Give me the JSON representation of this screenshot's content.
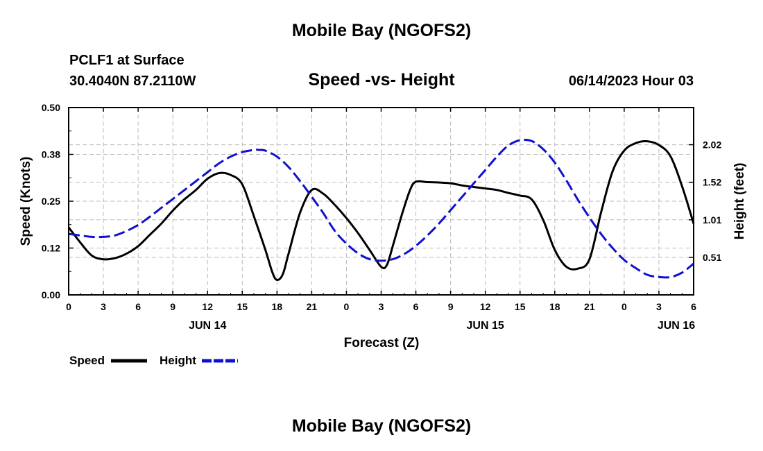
{
  "header": {
    "title": "Mobile Bay (NGOFS2)",
    "station": "PCLF1 at Surface",
    "coords": "30.4040N  87.2110W",
    "subtitle": "Speed -vs- Height",
    "datetime": "06/14/2023 Hour 03"
  },
  "footer": {
    "title": "Mobile Bay (NGOFS2)"
  },
  "chart_data": {
    "type": "line",
    "title": "Speed -vs- Height",
    "xlabel": "Forecast (Z)",
    "ylabel": "Speed (Knots)",
    "y2label": "Height (feet)",
    "x_unit": "hours from JUN 14 00Z",
    "xlim": [
      0,
      54
    ],
    "ylim": [
      0,
      0.5
    ],
    "y2lim": [
      0,
      2.52
    ],
    "x_tick_values": [
      0,
      3,
      6,
      9,
      12,
      15,
      18,
      21,
      24,
      27,
      30,
      33,
      36,
      39,
      42,
      45,
      48,
      51,
      54
    ],
    "x_tick_labels": [
      "0",
      "3",
      "6",
      "9",
      "12",
      "15",
      "18",
      "21",
      "0",
      "3",
      "6",
      "9",
      "12",
      "15",
      "18",
      "21",
      "0",
      "3",
      "6"
    ],
    "date_labels": [
      {
        "x": 12,
        "text": "JUN 14"
      },
      {
        "x": 36,
        "text": "JUN 15"
      },
      {
        "x": 52.5,
        "text": "JUN 16"
      }
    ],
    "y_ticks": [
      "0.00",
      "0.12",
      "0.25",
      "0.38",
      "0.50"
    ],
    "y_tick_values": [
      0,
      0.125,
      0.25,
      0.375,
      0.5
    ],
    "y2_ticks": [
      "0.51",
      "1.01",
      "1.52",
      "2.02"
    ],
    "y2_tick_values": [
      0.505,
      1.01,
      1.515,
      2.02
    ],
    "grid": true,
    "legend_position": "bottom-left",
    "series": [
      {
        "name": "Speed",
        "axis": "left",
        "color": "#000000",
        "dash": "solid",
        "x": [
          0,
          1,
          2,
          3,
          4,
          5,
          6,
          7,
          8,
          9,
          10,
          11,
          12,
          13,
          14,
          15,
          16,
          17,
          17.6,
          18,
          18.5,
          19,
          20,
          21,
          22,
          23,
          24,
          25,
          26,
          27,
          27.5,
          28,
          28.8,
          29.5,
          30,
          31,
          32,
          33,
          34,
          35,
          36,
          37,
          38,
          39,
          40,
          41,
          42,
          43,
          44,
          45,
          46,
          47,
          48,
          49,
          50,
          51,
          52,
          53,
          54
        ],
        "y": [
          0.18,
          0.14,
          0.105,
          0.095,
          0.098,
          0.11,
          0.13,
          0.16,
          0.19,
          0.225,
          0.255,
          0.28,
          0.31,
          0.325,
          0.32,
          0.295,
          0.21,
          0.12,
          0.06,
          0.04,
          0.055,
          0.11,
          0.22,
          0.28,
          0.27,
          0.24,
          0.205,
          0.165,
          0.12,
          0.075,
          0.08,
          0.13,
          0.215,
          0.28,
          0.302,
          0.301,
          0.3,
          0.298,
          0.292,
          0.288,
          0.284,
          0.28,
          0.272,
          0.265,
          0.255,
          0.2,
          0.12,
          0.075,
          0.07,
          0.095,
          0.22,
          0.33,
          0.385,
          0.405,
          0.41,
          0.4,
          0.37,
          0.29,
          0.19
        ]
      },
      {
        "name": "Height",
        "axis": "right",
        "color": "#1010d0",
        "dash": "dashed",
        "x": [
          0,
          1,
          2,
          3,
          4,
          5,
          6,
          7,
          8,
          9,
          10,
          11,
          12,
          13,
          14,
          15,
          16,
          16.5,
          17,
          18,
          19,
          20,
          21,
          22,
          23,
          24,
          25,
          26,
          27,
          28,
          29,
          30,
          31,
          32,
          33,
          34,
          35,
          36,
          37,
          38,
          39,
          40,
          41,
          42,
          43,
          44,
          45,
          46,
          47,
          48,
          49,
          50,
          51,
          52,
          53,
          54
        ],
        "y": [
          0.82,
          0.8,
          0.78,
          0.78,
          0.8,
          0.86,
          0.94,
          1.05,
          1.17,
          1.29,
          1.41,
          1.53,
          1.65,
          1.77,
          1.86,
          1.92,
          1.95,
          1.95,
          1.94,
          1.86,
          1.72,
          1.53,
          1.32,
          1.1,
          0.86,
          0.69,
          0.56,
          0.48,
          0.46,
          0.48,
          0.55,
          0.66,
          0.8,
          0.96,
          1.14,
          1.32,
          1.5,
          1.68,
          1.86,
          2.01,
          2.08,
          2.07,
          1.96,
          1.78,
          1.54,
          1.28,
          1.04,
          0.82,
          0.63,
          0.47,
          0.36,
          0.27,
          0.24,
          0.24,
          0.3,
          0.42
        ]
      }
    ]
  }
}
